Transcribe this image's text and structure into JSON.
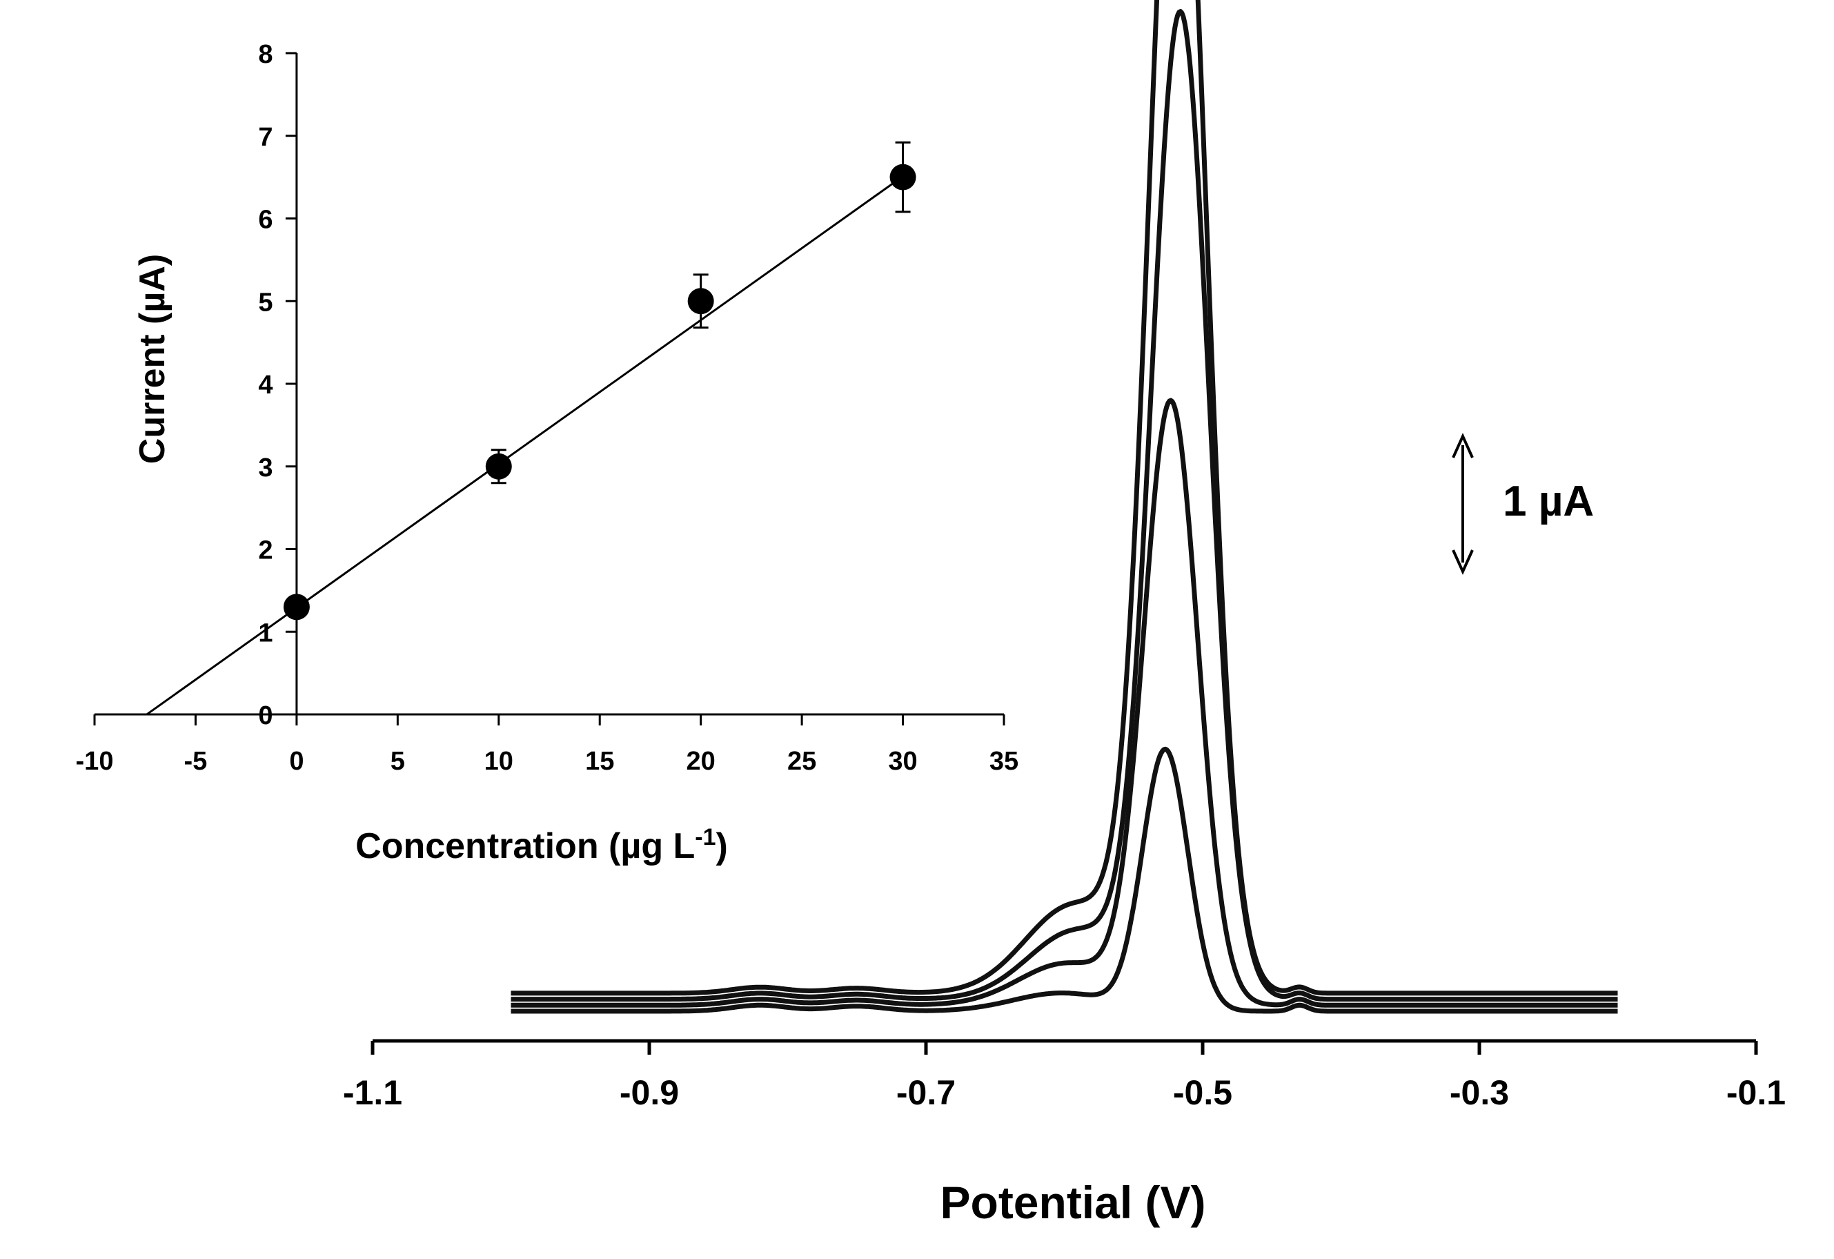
{
  "chart_data": [
    {
      "type": "line",
      "role": "voltammograms",
      "xlabel": "Potential (V)",
      "ylabel": "",
      "xlim": [
        -1.1,
        -0.1
      ],
      "x_ticks": [
        "-1.1",
        "-0.9",
        "-0.7",
        "-0.5",
        "-0.3",
        "-0.1"
      ],
      "y_axis_shown": false,
      "peak_potential_V": [
        -0.527,
        -0.523,
        -0.516,
        -0.518
      ],
      "peak_height_uA": [
        1.3,
        3.0,
        4.9,
        6.3
      ],
      "peak_width_V": [
        0.0165,
        0.0195,
        0.021,
        0.021
      ],
      "baseline_uA": [
        0.0,
        0.03,
        0.06,
        0.09
      ],
      "scale_bar": {
        "label": "1 µA",
        "value_uA": 1
      }
    },
    {
      "type": "scatter",
      "role": "calibration-inset",
      "xlabel": "Concentration (µg L",
      "xlabel_sup": "-1",
      "xlabel_close": ")",
      "ylabel": "Current (µA)",
      "xlim": [
        -10,
        35
      ],
      "ylim": [
        0,
        8
      ],
      "x_ticks": [
        "-10",
        "-5",
        "0",
        "5",
        "10",
        "15",
        "20",
        "25",
        "30",
        "35"
      ],
      "y_ticks": [
        "0",
        "1",
        "2",
        "3",
        "4",
        "5",
        "6",
        "7",
        "8"
      ],
      "points": [
        {
          "x": 0,
          "y": 1.3,
          "err": 0.0
        },
        {
          "x": 10,
          "y": 3.0,
          "err": 0.2
        },
        {
          "x": 20,
          "y": 5.0,
          "err": 0.32
        },
        {
          "x": 30,
          "y": 6.5,
          "err": 0.42
        }
      ],
      "fit_line": {
        "x_start": -7.4,
        "x_end": 30,
        "slope": 0.174,
        "intercept": 1.29
      }
    }
  ]
}
